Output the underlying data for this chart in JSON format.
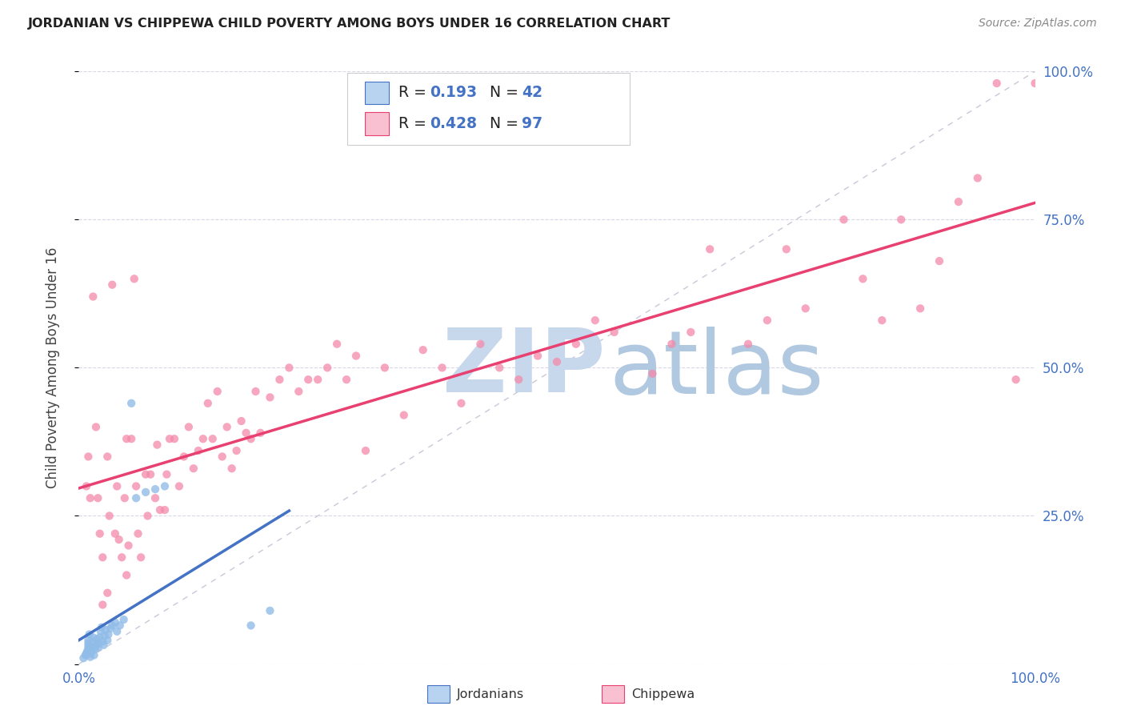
{
  "title": "JORDANIAN VS CHIPPEWA CHILD POVERTY AMONG BOYS UNDER 16 CORRELATION CHART",
  "source": "Source: ZipAtlas.com",
  "ylabel": "Child Poverty Among Boys Under 16",
  "xmin": 0.0,
  "xmax": 1.0,
  "ymin": 0.0,
  "ymax": 1.0,
  "jordanian_R": 0.193,
  "jordanian_N": 42,
  "chippewa_R": 0.428,
  "chippewa_N": 97,
  "jordanian_scatter_color": "#90bce8",
  "jordanian_line_color": "#4472c4",
  "jordanian_legend_color": "#b8d3f0",
  "chippewa_scatter_color": "#f48aaa",
  "chippewa_line_color": "#e84070",
  "chippewa_legend_color": "#f8c0d0",
  "diagonal_color": "#c8c8d8",
  "background_color": "#ffffff",
  "grid_color": "#d8d8e8",
  "watermark_zip_color": "#c8d8ec",
  "watermark_atlas_color": "#b0c8e0",
  "title_color": "#222222",
  "axis_label_color": "#444444",
  "tick_color": "#4472c4",
  "legend_text_color": "#222222",
  "legend_num_color": "#4472c4",
  "jordanian_x": [
    0.005,
    0.007,
    0.008,
    0.009,
    0.01,
    0.01,
    0.01,
    0.01,
    0.011,
    0.012,
    0.013,
    0.014,
    0.015,
    0.015,
    0.016,
    0.017,
    0.018,
    0.019,
    0.02,
    0.021,
    0.022,
    0.023,
    0.024,
    0.025,
    0.026,
    0.027,
    0.028,
    0.03,
    0.031,
    0.033,
    0.035,
    0.038,
    0.04,
    0.043,
    0.047,
    0.055,
    0.06,
    0.07,
    0.08,
    0.09,
    0.18,
    0.2
  ],
  "jordanian_y": [
    0.01,
    0.015,
    0.018,
    0.022,
    0.025,
    0.03,
    0.035,
    0.04,
    0.05,
    0.012,
    0.02,
    0.028,
    0.038,
    0.045,
    0.015,
    0.025,
    0.032,
    0.042,
    0.028,
    0.035,
    0.045,
    0.055,
    0.062,
    0.038,
    0.032,
    0.048,
    0.058,
    0.04,
    0.05,
    0.06,
    0.065,
    0.07,
    0.055,
    0.065,
    0.075,
    0.44,
    0.28,
    0.29,
    0.295,
    0.3,
    0.065,
    0.09
  ],
  "chippewa_x": [
    0.008,
    0.01,
    0.012,
    0.015,
    0.018,
    0.02,
    0.022,
    0.025,
    0.03,
    0.032,
    0.035,
    0.038,
    0.04,
    0.042,
    0.045,
    0.048,
    0.05,
    0.052,
    0.055,
    0.058,
    0.06,
    0.062,
    0.065,
    0.07,
    0.072,
    0.075,
    0.08,
    0.082,
    0.085,
    0.09,
    0.092,
    0.095,
    0.1,
    0.105,
    0.11,
    0.115,
    0.12,
    0.125,
    0.13,
    0.135,
    0.14,
    0.145,
    0.15,
    0.155,
    0.16,
    0.165,
    0.17,
    0.175,
    0.18,
    0.185,
    0.19,
    0.2,
    0.21,
    0.22,
    0.23,
    0.24,
    0.25,
    0.26,
    0.27,
    0.28,
    0.29,
    0.3,
    0.32,
    0.34,
    0.36,
    0.38,
    0.4,
    0.42,
    0.44,
    0.46,
    0.48,
    0.5,
    0.52,
    0.54,
    0.56,
    0.6,
    0.62,
    0.64,
    0.66,
    0.7,
    0.72,
    0.74,
    0.76,
    0.8,
    0.82,
    0.84,
    0.86,
    0.88,
    0.9,
    0.92,
    0.94,
    0.96,
    0.98,
    1.0,
    0.05,
    0.025,
    0.03
  ],
  "chippewa_y": [
    0.3,
    0.35,
    0.28,
    0.62,
    0.4,
    0.28,
    0.22,
    0.18,
    0.35,
    0.25,
    0.64,
    0.22,
    0.3,
    0.21,
    0.18,
    0.28,
    0.38,
    0.2,
    0.38,
    0.65,
    0.3,
    0.22,
    0.18,
    0.32,
    0.25,
    0.32,
    0.28,
    0.37,
    0.26,
    0.26,
    0.32,
    0.38,
    0.38,
    0.3,
    0.35,
    0.4,
    0.33,
    0.36,
    0.38,
    0.44,
    0.38,
    0.46,
    0.35,
    0.4,
    0.33,
    0.36,
    0.41,
    0.39,
    0.38,
    0.46,
    0.39,
    0.45,
    0.48,
    0.5,
    0.46,
    0.48,
    0.48,
    0.5,
    0.54,
    0.48,
    0.52,
    0.36,
    0.5,
    0.42,
    0.53,
    0.5,
    0.44,
    0.54,
    0.5,
    0.48,
    0.52,
    0.51,
    0.54,
    0.58,
    0.56,
    0.49,
    0.54,
    0.56,
    0.7,
    0.54,
    0.58,
    0.7,
    0.6,
    0.75,
    0.65,
    0.58,
    0.75,
    0.6,
    0.68,
    0.78,
    0.82,
    0.98,
    0.48,
    0.98,
    0.15,
    0.1,
    0.12
  ]
}
